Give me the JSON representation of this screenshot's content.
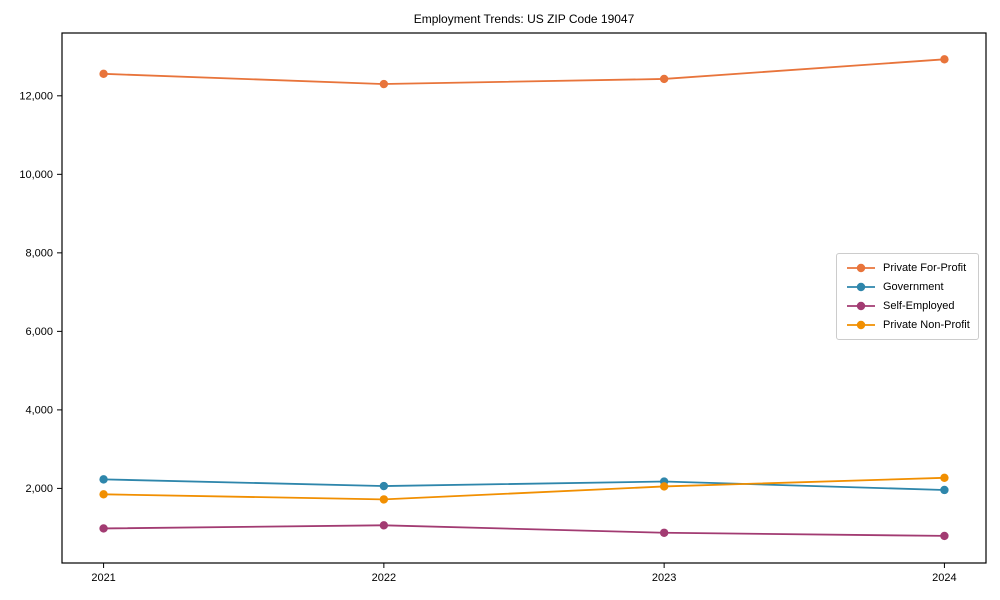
{
  "chart": {
    "title": "Employment Trends: US ZIP Code 19047"
  },
  "chart_data": {
    "type": "line",
    "title": "Employment Trends: US ZIP Code 19047",
    "xlabel": "",
    "ylabel": "",
    "categories": [
      "2021",
      "2022",
      "2023",
      "2024"
    ],
    "series": [
      {
        "name": "Private For-Profit",
        "color": "#E8743B",
        "values": [
          12560,
          12300,
          12430,
          12930
        ]
      },
      {
        "name": "Government",
        "color": "#2E86AB",
        "values": [
          2230,
          2060,
          2175,
          1960
        ]
      },
      {
        "name": "Self-Employed",
        "color": "#A23B72",
        "values": [
          980,
          1060,
          870,
          790
        ]
      },
      {
        "name": "Private Non-Profit",
        "color": "#F18F01",
        "values": [
          1850,
          1720,
          2050,
          2270
        ]
      }
    ],
    "ylim": [
      100,
      13600
    ],
    "yticks": [
      {
        "value": 2000,
        "label": "2,000"
      },
      {
        "value": 4000,
        "label": "4,000"
      },
      {
        "value": 6000,
        "label": "6,000"
      },
      {
        "value": 8000,
        "label": "8,000"
      },
      {
        "value": 10000,
        "label": "10,000"
      },
      {
        "value": 12000,
        "label": "12,000"
      }
    ],
    "grid": false,
    "legend_position": "right-middle",
    "axis_color": "#000000",
    "background_color": "#ffffff"
  }
}
